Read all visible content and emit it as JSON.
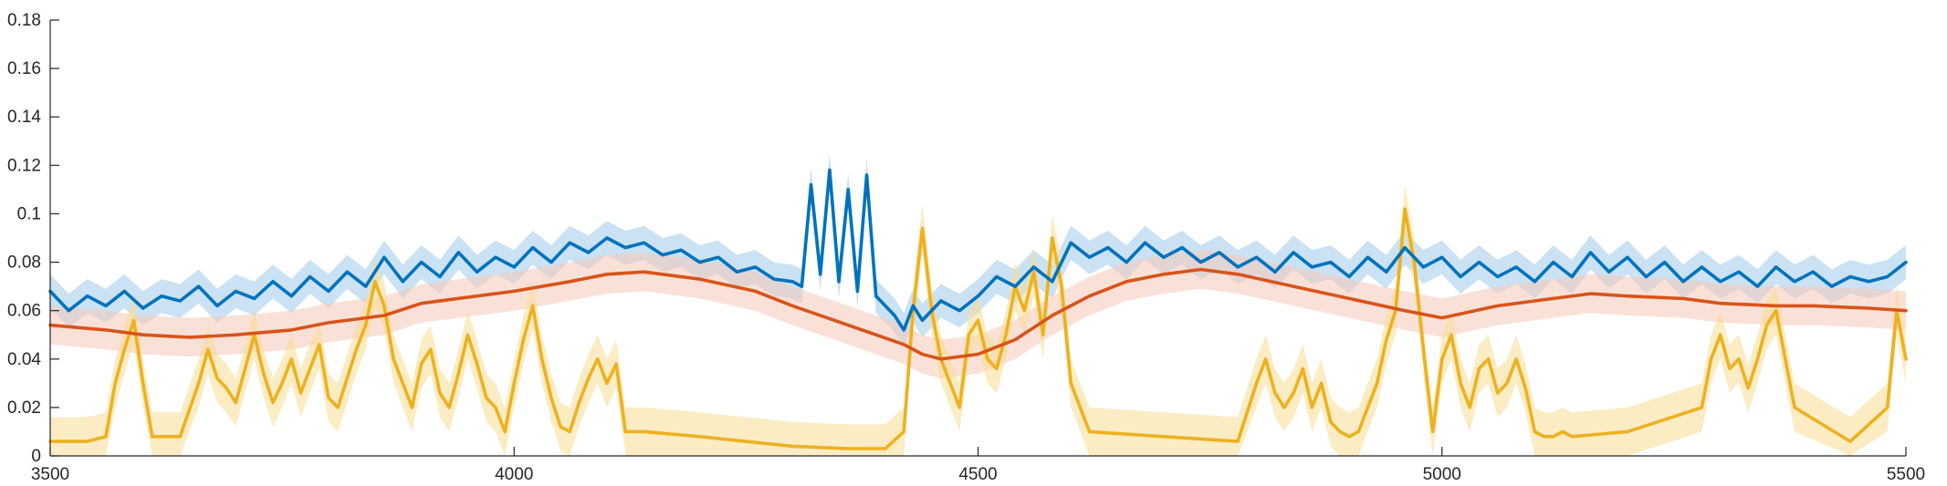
{
  "chart_data": {
    "type": "line",
    "title": "",
    "xlabel": "",
    "ylabel": "",
    "xlim": [
      3500,
      5500
    ],
    "ylim": [
      0,
      0.18
    ],
    "xticks": [
      3500,
      4000,
      4500,
      5000,
      5500
    ],
    "xtick_labels": [
      "3500",
      "4000",
      "4500",
      "5000",
      "5500"
    ],
    "yticks": [
      0,
      0.02,
      0.04,
      0.06,
      0.08,
      0.1,
      0.12,
      0.14,
      0.16,
      0.18
    ],
    "ytick_labels": [
      "0",
      "0.02",
      "0.04",
      "0.06",
      "0.08",
      "0.1",
      "0.12",
      "0.14",
      "0.16",
      "0.18"
    ],
    "grid": false,
    "legend": "none",
    "series": [
      {
        "color": "#0072BD",
        "band_color": "#9ecae9",
        "band_halfwidth": 0.007,
        "x": [
          3500,
          3520,
          3540,
          3560,
          3580,
          3600,
          3620,
          3640,
          3660,
          3680,
          3700,
          3720,
          3740,
          3760,
          3780,
          3800,
          3820,
          3840,
          3860,
          3880,
          3900,
          3920,
          3940,
          3960,
          3980,
          4000,
          4020,
          4040,
          4060,
          4080,
          4100,
          4120,
          4140,
          4160,
          4180,
          4200,
          4220,
          4240,
          4260,
          4280,
          4300,
          4310,
          4320,
          4330,
          4340,
          4350,
          4360,
          4370,
          4380,
          4390,
          4400,
          4410,
          4420,
          4430,
          4440,
          4460,
          4480,
          4500,
          4520,
          4540,
          4560,
          4580,
          4600,
          4620,
          4640,
          4660,
          4680,
          4700,
          4720,
          4740,
          4760,
          4780,
          4800,
          4820,
          4840,
          4860,
          4880,
          4900,
          4920,
          4940,
          4960,
          4980,
          5000,
          5020,
          5040,
          5060,
          5080,
          5100,
          5120,
          5140,
          5160,
          5180,
          5200,
          5220,
          5240,
          5260,
          5280,
          5300,
          5320,
          5340,
          5360,
          5380,
          5400,
          5420,
          5440,
          5460,
          5480,
          5500
        ],
        "values": [
          0.068,
          0.06,
          0.066,
          0.062,
          0.068,
          0.061,
          0.066,
          0.064,
          0.07,
          0.062,
          0.068,
          0.065,
          0.072,
          0.066,
          0.074,
          0.068,
          0.076,
          0.07,
          0.082,
          0.072,
          0.08,
          0.074,
          0.084,
          0.076,
          0.082,
          0.078,
          0.086,
          0.08,
          0.088,
          0.084,
          0.09,
          0.086,
          0.088,
          0.083,
          0.085,
          0.08,
          0.082,
          0.076,
          0.078,
          0.073,
          0.072,
          0.07,
          0.112,
          0.075,
          0.118,
          0.072,
          0.11,
          0.068,
          0.116,
          0.066,
          0.062,
          0.058,
          0.052,
          0.062,
          0.056,
          0.064,
          0.06,
          0.066,
          0.074,
          0.07,
          0.078,
          0.072,
          0.088,
          0.082,
          0.086,
          0.08,
          0.088,
          0.082,
          0.086,
          0.08,
          0.084,
          0.078,
          0.082,
          0.076,
          0.084,
          0.078,
          0.08,
          0.074,
          0.082,
          0.076,
          0.086,
          0.078,
          0.082,
          0.074,
          0.08,
          0.074,
          0.078,
          0.072,
          0.08,
          0.074,
          0.084,
          0.076,
          0.082,
          0.074,
          0.08,
          0.072,
          0.078,
          0.072,
          0.076,
          0.07,
          0.078,
          0.072,
          0.076,
          0.07,
          0.074,
          0.072,
          0.074,
          0.08
        ]
      },
      {
        "color": "#D95319",
        "band_color": "#f5c9b8",
        "band_halfwidth": 0.008,
        "x": [
          3500,
          3560,
          3600,
          3650,
          3700,
          3760,
          3800,
          3860,
          3900,
          3960,
          4000,
          4060,
          4100,
          4140,
          4200,
          4260,
          4300,
          4360,
          4420,
          4440,
          4460,
          4500,
          4540,
          4580,
          4620,
          4660,
          4700,
          4740,
          4780,
          4840,
          4900,
          4960,
          5000,
          5060,
          5100,
          5160,
          5200,
          5260,
          5300,
          5360,
          5400,
          5460,
          5500
        ],
        "values": [
          0.054,
          0.052,
          0.05,
          0.049,
          0.05,
          0.052,
          0.055,
          0.058,
          0.063,
          0.066,
          0.068,
          0.072,
          0.075,
          0.076,
          0.073,
          0.068,
          0.062,
          0.054,
          0.046,
          0.042,
          0.04,
          0.042,
          0.048,
          0.058,
          0.066,
          0.072,
          0.075,
          0.077,
          0.075,
          0.07,
          0.065,
          0.06,
          0.057,
          0.062,
          0.064,
          0.067,
          0.066,
          0.065,
          0.063,
          0.062,
          0.062,
          0.061,
          0.06
        ]
      },
      {
        "color": "#EDB120",
        "band_color": "#f7dd92",
        "band_halfwidth": 0.01,
        "x": [
          3500,
          3540,
          3560,
          3570,
          3580,
          3590,
          3600,
          3610,
          3620,
          3640,
          3660,
          3670,
          3680,
          3690,
          3700,
          3710,
          3720,
          3730,
          3740,
          3750,
          3760,
          3770,
          3780,
          3790,
          3800,
          3810,
          3820,
          3830,
          3840,
          3850,
          3860,
          3870,
          3880,
          3890,
          3900,
          3910,
          3920,
          3930,
          3940,
          3950,
          3960,
          3970,
          3980,
          3990,
          4000,
          4010,
          4020,
          4030,
          4040,
          4050,
          4060,
          4070,
          4080,
          4090,
          4100,
          4110,
          4120,
          4140,
          4200,
          4300,
          4360,
          4400,
          4420,
          4430,
          4440,
          4450,
          4460,
          4470,
          4480,
          4490,
          4500,
          4510,
          4520,
          4530,
          4540,
          4550,
          4560,
          4570,
          4580,
          4590,
          4600,
          4620,
          4700,
          4780,
          4800,
          4810,
          4820,
          4830,
          4840,
          4850,
          4860,
          4870,
          4880,
          4890,
          4900,
          4910,
          4920,
          4930,
          4940,
          4950,
          4960,
          4970,
          4980,
          4990,
          5000,
          5010,
          5020,
          5030,
          5040,
          5050,
          5060,
          5070,
          5080,
          5090,
          5100,
          5110,
          5120,
          5130,
          5140,
          5200,
          5280,
          5290,
          5300,
          5310,
          5320,
          5330,
          5340,
          5350,
          5360,
          5380,
          5440,
          5480,
          5490,
          5500
        ],
        "values": [
          0.006,
          0.006,
          0.008,
          0.03,
          0.044,
          0.056,
          0.03,
          0.008,
          0.008,
          0.008,
          0.03,
          0.044,
          0.032,
          0.028,
          0.022,
          0.036,
          0.05,
          0.034,
          0.022,
          0.03,
          0.04,
          0.026,
          0.036,
          0.046,
          0.024,
          0.02,
          0.032,
          0.044,
          0.054,
          0.072,
          0.062,
          0.04,
          0.03,
          0.02,
          0.038,
          0.044,
          0.026,
          0.02,
          0.034,
          0.05,
          0.038,
          0.024,
          0.02,
          0.01,
          0.03,
          0.048,
          0.062,
          0.04,
          0.024,
          0.012,
          0.01,
          0.022,
          0.032,
          0.04,
          0.03,
          0.038,
          0.01,
          0.01,
          0.008,
          0.004,
          0.003,
          0.003,
          0.01,
          0.06,
          0.094,
          0.06,
          0.04,
          0.03,
          0.02,
          0.05,
          0.056,
          0.04,
          0.036,
          0.05,
          0.07,
          0.06,
          0.076,
          0.05,
          0.09,
          0.07,
          0.03,
          0.01,
          0.008,
          0.006,
          0.03,
          0.04,
          0.026,
          0.02,
          0.026,
          0.036,
          0.02,
          0.03,
          0.014,
          0.01,
          0.008,
          0.01,
          0.02,
          0.03,
          0.048,
          0.06,
          0.102,
          0.08,
          0.044,
          0.01,
          0.04,
          0.05,
          0.03,
          0.02,
          0.036,
          0.04,
          0.026,
          0.03,
          0.04,
          0.028,
          0.01,
          0.008,
          0.008,
          0.01,
          0.008,
          0.01,
          0.02,
          0.04,
          0.05,
          0.036,
          0.04,
          0.028,
          0.04,
          0.054,
          0.06,
          0.02,
          0.006,
          0.02,
          0.06,
          0.04
        ]
      }
    ]
  }
}
